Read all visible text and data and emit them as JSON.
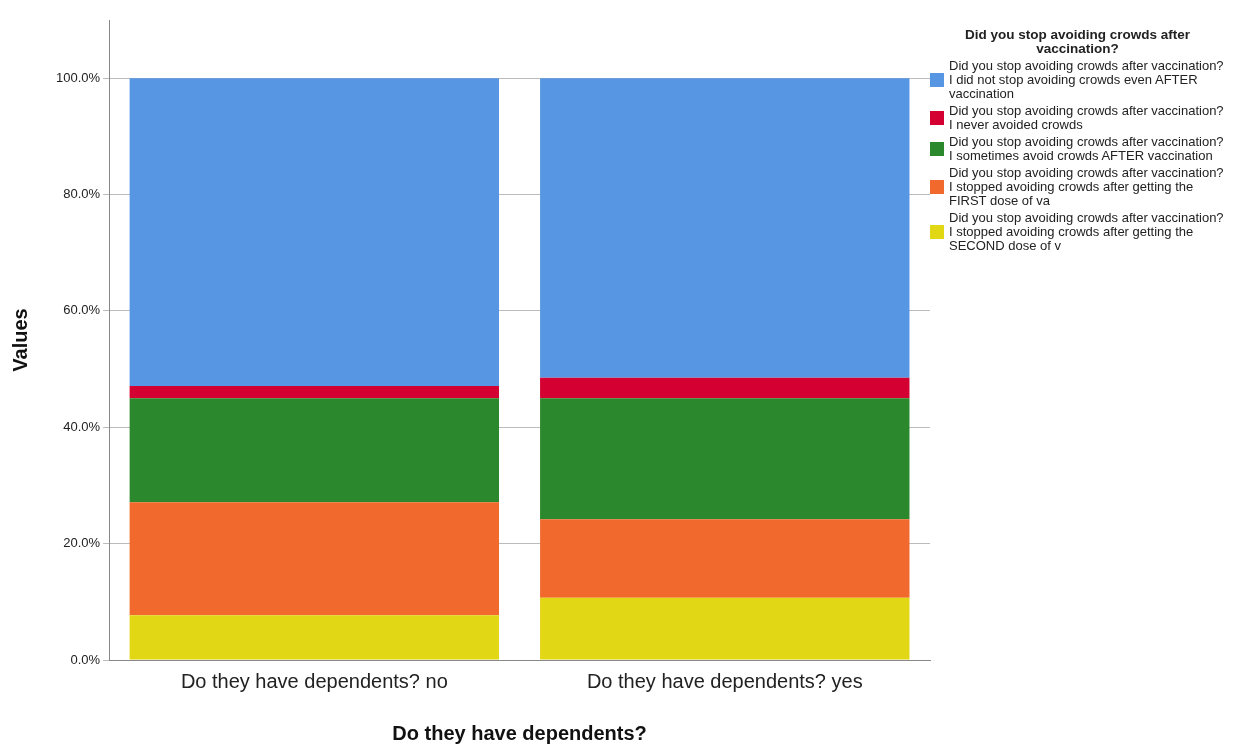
{
  "chart_data": {
    "type": "bar",
    "stacked": true,
    "xlabel": "Do they have dependents?",
    "ylabel": "Values",
    "legend_title": "Did you stop avoiding crowds after vaccination?",
    "legend": "right",
    "grid": "y",
    "categories": [
      "Do they have dependents? no",
      "Do they have dependents? yes"
    ],
    "ylim": [
      0,
      110
    ],
    "yticks": [
      {
        "value": 0,
        "label": "0.0%"
      },
      {
        "value": 20,
        "label": "20.0%"
      },
      {
        "value": 40,
        "label": "40.0%"
      },
      {
        "value": 60,
        "label": "60.0%"
      },
      {
        "value": 80,
        "label": "80.0%"
      },
      {
        "value": 100,
        "label": "100.0%"
      }
    ],
    "series": [
      {
        "name": "Did you stop avoiding crowds after vaccination? I stopped avoiding crowds after getting the SECOND dose of v",
        "color": "#e2d714",
        "values": [
          7.7,
          10.7
        ]
      },
      {
        "name": "Did you stop avoiding crowds after vaccination? I stopped avoiding crowds after getting the FIRST dose of va",
        "color": "#f1692c",
        "values": [
          19.4,
          13.5
        ]
      },
      {
        "name": "Did you stop avoiding crowds after vaccination? I sometimes avoid crowds AFTER vaccination",
        "color": "#2c882c",
        "values": [
          17.9,
          20.8
        ]
      },
      {
        "name": "Did you stop avoiding crowds after vaccination? I never avoided crowds",
        "color": "#d50032",
        "values": [
          2.1,
          3.5
        ]
      },
      {
        "name": "Did you stop avoiding crowds after vaccination? I did not stop avoiding crowds even AFTER vaccination",
        "color": "#5696e2",
        "values": [
          52.9,
          51.5
        ]
      }
    ]
  }
}
